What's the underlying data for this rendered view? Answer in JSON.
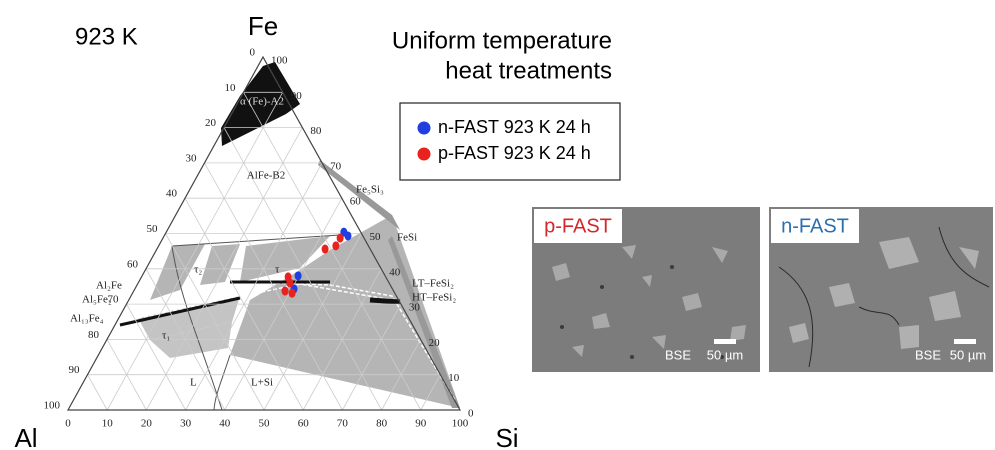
{
  "header": {
    "temperature": "923 K",
    "title_lines": [
      "Uniform temperature",
      "heat treatments"
    ]
  },
  "diagram": {
    "corners": {
      "fe": "Fe",
      "al": "Al",
      "si": "Si"
    },
    "bottom_ticks": [
      0,
      10,
      20,
      30,
      40,
      50,
      60,
      70,
      80,
      90,
      100
    ],
    "left_ticks": [
      100,
      90,
      80,
      70,
      60,
      50,
      40,
      30,
      20,
      10,
      0
    ],
    "right_ticks": [
      100,
      90,
      80,
      70,
      60,
      50,
      40,
      30,
      20,
      10,
      0
    ],
    "phase_labels": [
      "α (Fe)-A2",
      "AlFe-B2",
      "Fe₅Si₃",
      "FeSi",
      "LT–FeSi₂",
      "HT–FeSi₂",
      "Al₂Fe",
      "Al₅Fe₂",
      "Al₁₃Fe₄",
      "τ₂",
      "τ₁",
      "τ",
      "L",
      "L+Si"
    ]
  },
  "series": [
    {
      "name": "n-FAST 923 K 24 h",
      "color": "#1f3fe0",
      "points": [
        {
          "si": 45.3,
          "fe": 50.4
        },
        {
          "si": 46.9,
          "fe": 49.3
        },
        {
          "si": 39.8,
          "fe": 38.0
        },
        {
          "si": 40.6,
          "fe": 34.3
        }
      ]
    },
    {
      "name": "p-FAST 923 K 24 h",
      "color": "#e8231f",
      "points": [
        {
          "si": 45.2,
          "fe": 48.7
        },
        {
          "si": 45.2,
          "fe": 46.5
        },
        {
          "si": 42.9,
          "fe": 45.6
        },
        {
          "si": 37.4,
          "fe": 37.7
        },
        {
          "si": 38.7,
          "fe": 36.0
        },
        {
          "si": 38.6,
          "fe": 33.7
        },
        {
          "si": 40.7,
          "fe": 33.1
        }
      ]
    }
  ],
  "micrographs": [
    {
      "label": "p-FAST",
      "label_color": "#d0282b",
      "detector": "BSE",
      "scale": "50 µm"
    },
    {
      "label": "n-FAST",
      "label_color": "#2a6fb0",
      "detector": "BSE",
      "scale": "50 µm"
    }
  ]
}
